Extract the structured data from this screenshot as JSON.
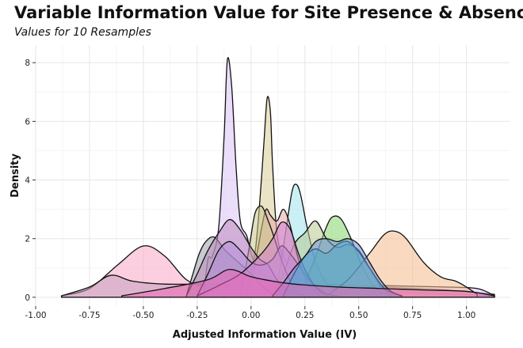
{
  "chart_data": {
    "type": "area",
    "title": "Variable Information Value for Site Presence & Absence",
    "subtitle": "Values for 10 Resamples",
    "xlabel": "Adjusted Information Value (IV)",
    "ylabel": "Density",
    "xlim": [
      -1.0,
      1.2
    ],
    "ylim": [
      -0.3,
      8.6
    ],
    "x_ticks": [
      -1.0,
      -0.75,
      -0.5,
      -0.25,
      0.0,
      0.25,
      0.5,
      0.75,
      1.0
    ],
    "x_tick_labels": [
      "-1.00",
      "-0.75",
      "-0.50",
      "-0.25",
      "0.00",
      "0.25",
      "0.50",
      "0.75",
      "1.00"
    ],
    "y_ticks": [
      0,
      2,
      4,
      6,
      8
    ],
    "y_tick_labels": [
      "0",
      "2",
      "4",
      "6",
      "8"
    ],
    "grid": true,
    "legend": "none",
    "series": [
      {
        "name": "pink-wide",
        "color": "#f7a8c4",
        "points": [
          [
            -0.88,
            0.05
          ],
          [
            -0.75,
            0.3
          ],
          [
            -0.62,
            1.1
          ],
          [
            -0.5,
            1.75
          ],
          [
            -0.4,
            1.4
          ],
          [
            -0.3,
            0.6
          ],
          [
            -0.2,
            0.35
          ],
          [
            -0.05,
            0.3
          ],
          [
            0.1,
            0.28
          ],
          [
            0.3,
            0.25
          ],
          [
            0.6,
            0.2
          ],
          [
            0.9,
            0.12
          ],
          [
            1.13,
            0.05
          ]
        ]
      },
      {
        "name": "mauve-flat",
        "color": "#c9a0c0",
        "points": [
          [
            -0.88,
            0.05
          ],
          [
            -0.75,
            0.35
          ],
          [
            -0.65,
            0.75
          ],
          [
            -0.55,
            0.55
          ],
          [
            -0.4,
            0.45
          ],
          [
            -0.2,
            0.45
          ],
          [
            0.0,
            0.4
          ],
          [
            0.3,
            0.4
          ],
          [
            0.6,
            0.35
          ],
          [
            0.9,
            0.25
          ],
          [
            1.13,
            0.1
          ]
        ]
      },
      {
        "name": "purple-spike",
        "color": "#d9c2f5",
        "points": [
          [
            -0.22,
            0.05
          ],
          [
            -0.2,
            1.3
          ],
          [
            -0.18,
            1.4
          ],
          [
            -0.15,
            2.4
          ],
          [
            -0.125,
            5.5
          ],
          [
            -0.11,
            8.1
          ],
          [
            -0.09,
            7.2
          ],
          [
            -0.07,
            4.5
          ],
          [
            -0.05,
            2.6
          ],
          [
            -0.02,
            2.1
          ],
          [
            0.0,
            1.5
          ],
          [
            0.03,
            1.0
          ],
          [
            0.08,
            0.6
          ],
          [
            0.15,
            0.5
          ],
          [
            0.3,
            0.45
          ],
          [
            0.6,
            0.4
          ],
          [
            0.9,
            0.35
          ],
          [
            1.05,
            0.3
          ],
          [
            1.13,
            0.05
          ]
        ]
      },
      {
        "name": "khaki-spike",
        "color": "#d8cc95",
        "points": [
          [
            -0.02,
            0.05
          ],
          [
            0.0,
            0.9
          ],
          [
            0.02,
            1.6
          ],
          [
            0.04,
            3.2
          ],
          [
            0.06,
            5.3
          ],
          [
            0.075,
            6.8
          ],
          [
            0.09,
            6.3
          ],
          [
            0.1,
            4.5
          ],
          [
            0.12,
            2.2
          ],
          [
            0.15,
            1.4
          ],
          [
            0.2,
            0.8
          ],
          [
            0.25,
            0.3
          ],
          [
            0.3,
            0.05
          ]
        ]
      },
      {
        "name": "cyan",
        "color": "#9ee3ec",
        "points": [
          [
            0.1,
            0.05
          ],
          [
            0.13,
            0.8
          ],
          [
            0.16,
            2.2
          ],
          [
            0.19,
            3.6
          ],
          [
            0.21,
            3.85
          ],
          [
            0.23,
            3.5
          ],
          [
            0.26,
            2.4
          ],
          [
            0.3,
            1.2
          ],
          [
            0.35,
            0.5
          ],
          [
            0.42,
            0.1
          ]
        ]
      },
      {
        "name": "green",
        "color": "#85d66c",
        "points": [
          [
            0.2,
            0.05
          ],
          [
            0.25,
            0.5
          ],
          [
            0.3,
            1.4
          ],
          [
            0.35,
            2.4
          ],
          [
            0.38,
            2.75
          ],
          [
            0.42,
            2.65
          ],
          [
            0.47,
            1.9
          ],
          [
            0.52,
            1.0
          ],
          [
            0.58,
            0.3
          ],
          [
            0.65,
            0.05
          ]
        ]
      },
      {
        "name": "olive-green",
        "color": "#b8c98f",
        "points": [
          [
            0.1,
            0.05
          ],
          [
            0.15,
            0.8
          ],
          [
            0.2,
            1.8
          ],
          [
            0.25,
            2.2
          ],
          [
            0.3,
            2.6
          ],
          [
            0.35,
            2.0
          ],
          [
            0.4,
            1.7
          ],
          [
            0.45,
            1.8
          ],
          [
            0.5,
            1.6
          ],
          [
            0.55,
            1.0
          ],
          [
            0.6,
            0.4
          ],
          [
            0.65,
            0.1
          ]
        ]
      },
      {
        "name": "orange",
        "color": "#f4b98d",
        "points": [
          [
            0.35,
            0.05
          ],
          [
            0.45,
            0.6
          ],
          [
            0.55,
            1.5
          ],
          [
            0.62,
            2.15
          ],
          [
            0.67,
            2.25
          ],
          [
            0.72,
            2.0
          ],
          [
            0.8,
            1.2
          ],
          [
            0.88,
            0.7
          ],
          [
            0.95,
            0.55
          ],
          [
            1.0,
            0.35
          ],
          [
            1.05,
            0.1
          ]
        ]
      },
      {
        "name": "salmon-peak",
        "color": "#e8a8a8",
        "points": [
          [
            -0.02,
            0.05
          ],
          [
            0.02,
            1.2
          ],
          [
            0.05,
            2.4
          ],
          [
            0.07,
            3.0
          ],
          [
            0.09,
            2.8
          ],
          [
            0.12,
            2.6
          ],
          [
            0.15,
            3.0
          ],
          [
            0.18,
            2.5
          ],
          [
            0.22,
            1.3
          ],
          [
            0.27,
            0.4
          ],
          [
            0.32,
            0.05
          ]
        ]
      },
      {
        "name": "olive-mid",
        "color": "#c9c78a",
        "points": [
          [
            -0.05,
            0.05
          ],
          [
            -0.02,
            1.2
          ],
          [
            0.0,
            2.1
          ],
          [
            0.02,
            2.9
          ],
          [
            0.05,
            3.1
          ],
          [
            0.08,
            2.6
          ],
          [
            0.1,
            2.2
          ],
          [
            0.15,
            1.1
          ],
          [
            0.2,
            0.3
          ],
          [
            0.25,
            0.05
          ]
        ]
      },
      {
        "name": "gray",
        "color": "#9aa0a8",
        "points": [
          [
            -0.3,
            0.05
          ],
          [
            -0.27,
            0.8
          ],
          [
            -0.24,
            1.5
          ],
          [
            -0.21,
            1.9
          ],
          [
            -0.17,
            2.05
          ],
          [
            -0.12,
            1.6
          ],
          [
            -0.06,
            1.2
          ],
          [
            0.0,
            0.8
          ],
          [
            0.05,
            0.4
          ],
          [
            0.1,
            0.1
          ]
        ]
      },
      {
        "name": "mauve-mid",
        "color": "#c08bc0",
        "points": [
          [
            -0.3,
            0.05
          ],
          [
            -0.25,
            0.8
          ],
          [
            -0.2,
            1.6
          ],
          [
            -0.15,
            2.2
          ],
          [
            -0.1,
            2.65
          ],
          [
            -0.05,
            2.3
          ],
          [
            0.0,
            1.7
          ],
          [
            0.04,
            1.3
          ],
          [
            0.08,
            1.1
          ],
          [
            0.12,
            0.6
          ],
          [
            0.18,
            0.2
          ],
          [
            0.25,
            0.05
          ]
        ]
      },
      {
        "name": "violet",
        "color": "#b290d8",
        "points": [
          [
            -0.25,
            0.05
          ],
          [
            -0.2,
            0.8
          ],
          [
            -0.15,
            1.6
          ],
          [
            -0.1,
            1.9
          ],
          [
            -0.05,
            1.6
          ],
          [
            0.0,
            1.2
          ],
          [
            0.05,
            1.1
          ],
          [
            0.1,
            1.3
          ],
          [
            0.14,
            1.75
          ],
          [
            0.18,
            1.5
          ],
          [
            0.23,
            1.0
          ],
          [
            0.28,
            0.5
          ],
          [
            0.35,
            0.1
          ]
        ]
      },
      {
        "name": "magenta",
        "color": "#d27fd4",
        "points": [
          [
            -0.25,
            0.05
          ],
          [
            -0.15,
            0.4
          ],
          [
            -0.05,
            0.8
          ],
          [
            0.05,
            1.5
          ],
          [
            0.1,
            2.0
          ],
          [
            0.14,
            2.55
          ],
          [
            0.18,
            2.35
          ],
          [
            0.22,
            1.5
          ],
          [
            0.26,
            0.8
          ],
          [
            0.32,
            0.2
          ],
          [
            0.4,
            0.05
          ]
        ]
      },
      {
        "name": "teal",
        "color": "#2fbfae",
        "points": [
          [
            0.15,
            0.05
          ],
          [
            0.2,
            0.8
          ],
          [
            0.25,
            1.4
          ],
          [
            0.3,
            1.65
          ],
          [
            0.35,
            1.5
          ],
          [
            0.4,
            1.8
          ],
          [
            0.45,
            1.9
          ],
          [
            0.5,
            1.55
          ],
          [
            0.55,
            1.0
          ],
          [
            0.62,
            0.3
          ],
          [
            0.7,
            0.05
          ]
        ]
      },
      {
        "name": "blue",
        "color": "#6f93e0",
        "points": [
          [
            0.1,
            0.05
          ],
          [
            0.15,
            0.5
          ],
          [
            0.2,
            1.0
          ],
          [
            0.25,
            1.4
          ],
          [
            0.3,
            1.9
          ],
          [
            0.35,
            2.0
          ],
          [
            0.4,
            1.9
          ],
          [
            0.45,
            2.0
          ],
          [
            0.5,
            1.8
          ],
          [
            0.55,
            1.2
          ],
          [
            0.6,
            0.6
          ],
          [
            0.65,
            0.2
          ],
          [
            0.7,
            0.05
          ]
        ]
      },
      {
        "name": "pink-low",
        "color": "#e968b4",
        "points": [
          [
            -0.6,
            0.05
          ],
          [
            -0.4,
            0.3
          ],
          [
            -0.2,
            0.6
          ],
          [
            -0.1,
            0.95
          ],
          [
            0.0,
            0.7
          ],
          [
            0.1,
            0.55
          ],
          [
            0.2,
            0.45
          ],
          [
            0.4,
            0.35
          ],
          [
            0.6,
            0.3
          ],
          [
            0.8,
            0.25
          ],
          [
            1.0,
            0.2
          ],
          [
            1.13,
            0.05
          ]
        ]
      }
    ]
  }
}
